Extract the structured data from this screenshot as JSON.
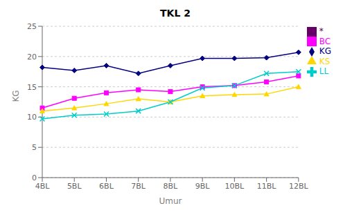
{
  "chart_data": {
    "type": "line",
    "title": "TKL 2",
    "x_label": "Umur",
    "y_label": "KG",
    "categories": [
      "4BL",
      "5BL",
      "6BL",
      "7BL",
      "8BL",
      "9BL",
      "10BL",
      "11BL",
      "12BL"
    ],
    "series": [
      {
        "name": "KG",
        "color": "#000080",
        "marker": "diamond",
        "values": [
          18.2,
          17.7,
          18.5,
          17.2,
          18.5,
          19.7,
          19.7,
          19.8,
          20.7
        ]
      },
      {
        "name": "BC",
        "color": "#ff00ff",
        "marker": "square",
        "values": [
          11.5,
          13.1,
          14.0,
          14.5,
          14.2,
          15.0,
          15.2,
          15.8,
          16.8
        ]
      },
      {
        "name": "KS",
        "color": "#ffd700",
        "marker": "triangle",
        "values": [
          11.0,
          11.5,
          12.2,
          13.0,
          12.5,
          13.5,
          13.7,
          13.8,
          15.0
        ]
      },
      {
        "name": "LL",
        "color": "#00cccc",
        "marker": "cross",
        "values": [
          9.7,
          10.3,
          10.5,
          11.0,
          12.5,
          14.8,
          15.2,
          17.2,
          17.5
        ]
      },
      {
        "name": "*",
        "color": "#660066",
        "marker": "square",
        "values": [
          null,
          null,
          null,
          null,
          null,
          null,
          null,
          null,
          null
        ]
      }
    ],
    "ylim": [
      0,
      25
    ],
    "yticks": [
      0,
      5,
      10,
      15,
      20,
      25
    ],
    "grid": true,
    "legend": "right"
  }
}
